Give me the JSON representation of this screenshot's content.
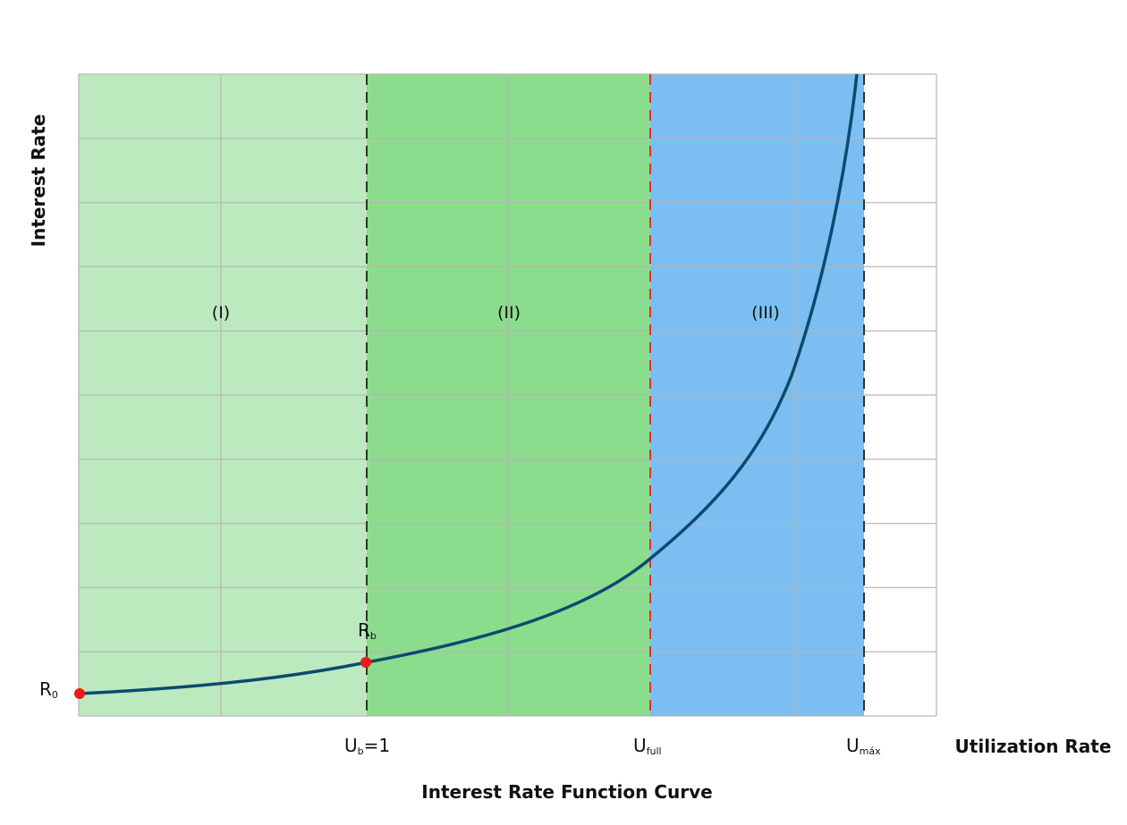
{
  "axes": {
    "y_label": "Interest Rate",
    "x_label": "Utilization Rate"
  },
  "title": "Interest Rate Function Curve",
  "regions": [
    "(I)",
    "(II)",
    "(III)"
  ],
  "points": [
    {
      "main": "R",
      "sub": "0"
    },
    {
      "main": "R",
      "sub": "b"
    }
  ],
  "markers": [
    {
      "main": "U",
      "sub": "b",
      "suffix": "=1"
    },
    {
      "main": "U",
      "sub": "full"
    },
    {
      "main": "U",
      "sub": "máx"
    }
  ]
}
